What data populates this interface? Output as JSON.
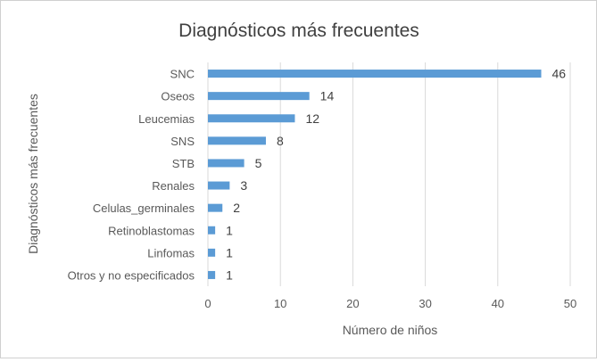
{
  "chart_data": {
    "type": "bar",
    "orientation": "horizontal",
    "title": "Diagnósticos más frecuentes",
    "xlabel": "Número de niños",
    "ylabel": "Diagnósticos más frecuentes",
    "categories": [
      "SNC",
      "Oseos",
      "Leucemias",
      "SNS",
      "STB",
      "Renales",
      "Celulas_germinales",
      "Retinoblastomas",
      "Linfomas",
      "Otros y no especificados"
    ],
    "values": [
      46,
      14,
      12,
      8,
      5,
      3,
      2,
      1,
      1,
      1
    ],
    "xlim": [
      0,
      50
    ],
    "xticks": [
      "0",
      "10",
      "20",
      "30",
      "40",
      "50"
    ],
    "data_labels": [
      "46",
      "14",
      "12",
      "8",
      "5",
      "3",
      "2",
      "1",
      "1",
      "1"
    ],
    "grid": "vertical",
    "legend": "none",
    "colors": {
      "bar": "#5b9bd5",
      "grid": "#d9d9d9",
      "text": "#595959",
      "title": "#404040"
    }
  }
}
